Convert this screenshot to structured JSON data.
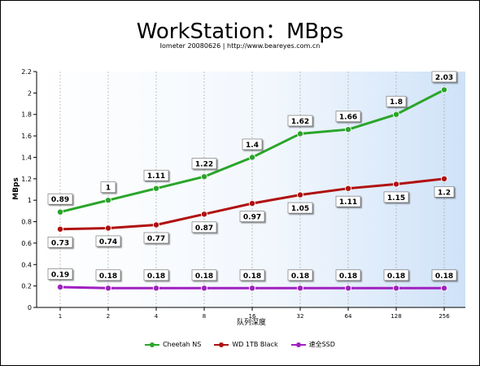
{
  "header": {
    "title": "WorkStation：MBps",
    "subtitle": "Iometer 20080626 | http://www.beareyes.com.cn"
  },
  "chart_data": {
    "type": "line",
    "title": "WorkStation：MBps",
    "subtitle": "Iometer 20080626 | http://www.beareyes.com.cn",
    "xlabel": "队列深度",
    "ylabel": "MBps",
    "categories": [
      "1",
      "2",
      "4",
      "8",
      "16",
      "32",
      "64",
      "128",
      "256"
    ],
    "yticks": [
      "0",
      "0.2",
      "0.4",
      "0.6",
      "0.8",
      "1",
      "1.2",
      "1.4",
      "1.6",
      "1.8",
      "2",
      "2.2"
    ],
    "ylim": [
      0,
      2.2
    ],
    "grid": "vertical dashed",
    "legend_position": "bottom",
    "series": [
      {
        "name": "Cheetah NS",
        "color": "#2aa52a",
        "values": [
          0.89,
          1,
          1.11,
          1.22,
          1.4,
          1.62,
          1.66,
          1.8,
          2.03
        ],
        "labels": [
          "0.89",
          "1",
          "1.11",
          "1.22",
          "1.4",
          "1.62",
          "1.66",
          "1.8",
          "2.03"
        ],
        "label_side": "above"
      },
      {
        "name": "WD 1TB Black",
        "color": "#b01010",
        "values": [
          0.73,
          0.74,
          0.77,
          0.87,
          0.97,
          1.05,
          1.11,
          1.15,
          1.2
        ],
        "labels": [
          "0.73",
          "0.74",
          "0.77",
          "0.87",
          "0.97",
          "1.05",
          "1.11",
          "1.15",
          "1.2"
        ],
        "label_side": "below"
      },
      {
        "name": "速全SSD",
        "color": "#a020c0",
        "values": [
          0.19,
          0.18,
          0.18,
          0.18,
          0.18,
          0.18,
          0.18,
          0.18,
          0.18
        ],
        "labels": [
          "0.19",
          "0.18",
          "0.18",
          "0.18",
          "0.18",
          "0.18",
          "0.18",
          "0.18",
          "0.18"
        ],
        "label_side": "above"
      }
    ]
  }
}
